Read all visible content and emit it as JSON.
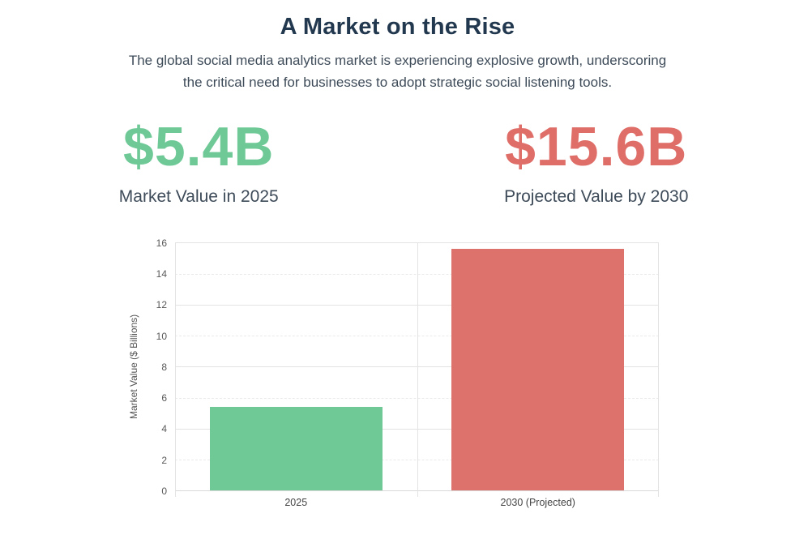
{
  "header": {
    "title": "A Market on the Rise",
    "subtitle_lines": [
      "The global social media analytics market is experiencing explosive growth, underscoring",
      "the critical need for businesses to adopt strategic social listening tools."
    ]
  },
  "stats": [
    {
      "value": "$5.4B",
      "label": "Market Value in 2025",
      "color": "#6ec997"
    },
    {
      "value": "$15.6B",
      "label": "Projected Value by 2030",
      "color": "#df6e69"
    }
  ],
  "colors": {
    "title_color": "#22384e",
    "body_text": "#3e4b59",
    "accent_green": "#6ec997",
    "accent_red": "#df6e69",
    "gridline": "#e3e3e3"
  },
  "chart_data": {
    "type": "bar",
    "categories": [
      "2025",
      "2030 (Projected)"
    ],
    "values": [
      5.4,
      15.6
    ],
    "bar_colors": [
      "#6ec997",
      "#dd716c"
    ],
    "title": "",
    "xlabel": "",
    "ylabel": "Market Value ($ Billions)",
    "ylim": [
      0,
      16
    ],
    "yticks": [
      0,
      2,
      4,
      6,
      8,
      10,
      12,
      14,
      16
    ],
    "grid": true,
    "legend": false
  }
}
